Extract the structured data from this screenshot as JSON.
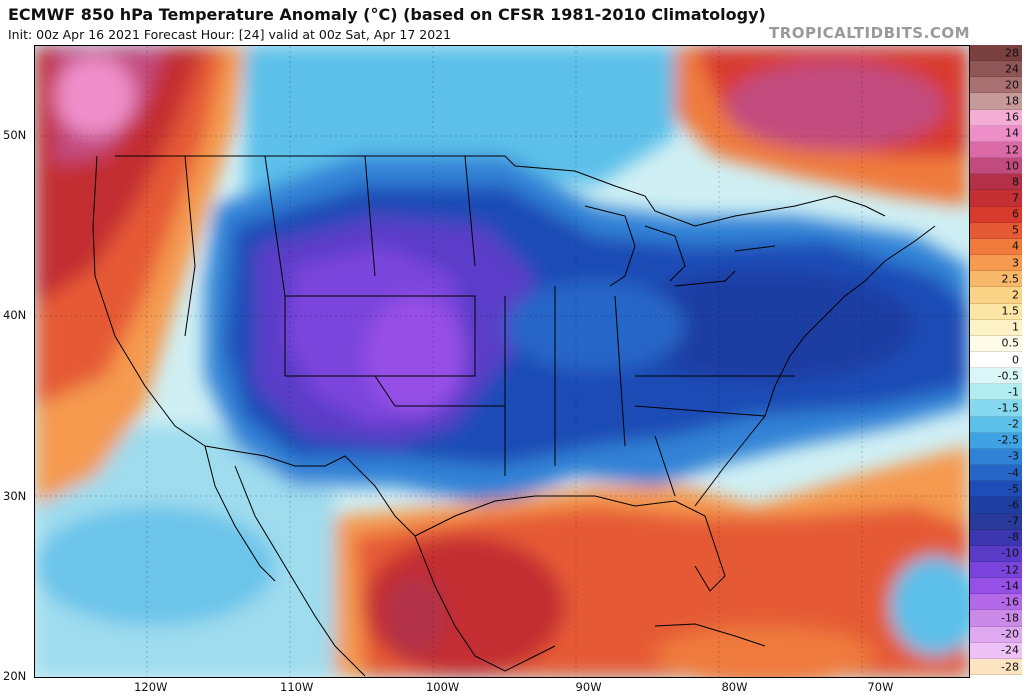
{
  "header": {
    "title": "ECMWF 850 hPa Temperature Anomaly (°C) (based on CFSR 1981-2010 Climatology)",
    "subtitle": "Init: 00z Apr 16 2021   Forecast Hour: [24]   valid at 00z Sat, Apr 17 2021",
    "brand": "TROPICALTIDBITS.COM"
  },
  "map": {
    "lat_labels": [
      {
        "text": "50N",
        "lat": 50
      },
      {
        "text": "40N",
        "lat": 40
      },
      {
        "text": "30N",
        "lat": 30
      },
      {
        "text": "20N",
        "lat": 20
      }
    ],
    "lon_labels": [
      {
        "text": "120W",
        "lon": -120
      },
      {
        "text": "110W",
        "lon": -110
      },
      {
        "text": "100W",
        "lon": -100
      },
      {
        "text": "90W",
        "lon": -90
      },
      {
        "text": "80W",
        "lon": -80
      },
      {
        "text": "70W",
        "lon": -70
      }
    ],
    "lon_range": [
      -128,
      -64
    ],
    "lat_range": [
      20,
      55
    ],
    "anomaly_regions": [
      {
        "name": "pacific-northwest-warm",
        "value": 10,
        "color": "#c0303a"
      },
      {
        "name": "northwest-canada-warm",
        "value": 14,
        "color": "#e89ab0"
      },
      {
        "name": "west-coast-warm",
        "value": 4,
        "color": "#ef7a3c"
      },
      {
        "name": "eastern-canada-warm",
        "value": 8,
        "color": "#c33a4a"
      },
      {
        "name": "mexico-gulf-warm",
        "value": 5,
        "color": "#e05a30"
      },
      {
        "name": "central-us-cold",
        "value": -12,
        "color": "#8a47e0"
      },
      {
        "name": "eastern-us-cold",
        "value": -6,
        "color": "#1f48b8"
      },
      {
        "name": "plains-cold",
        "value": -14,
        "color": "#a45ae8"
      }
    ]
  },
  "colorbar": {
    "items": [
      {
        "label": "28",
        "color": "#7a4040"
      },
      {
        "label": "24",
        "color": "#8e5656"
      },
      {
        "label": "20",
        "color": "#a87070"
      },
      {
        "label": "18",
        "color": "#c79a9a"
      },
      {
        "label": "16",
        "color": "#f4aed6"
      },
      {
        "label": "14",
        "color": "#ee8ec8"
      },
      {
        "label": "12",
        "color": "#d96aa5"
      },
      {
        "label": "10",
        "color": "#c24b7e"
      },
      {
        "label": "8",
        "color": "#b23048"
      },
      {
        "label": "7",
        "color": "#c32f33"
      },
      {
        "label": "6",
        "color": "#d93a2e"
      },
      {
        "label": "5",
        "color": "#e55a35"
      },
      {
        "label": "4",
        "color": "#ef7a3c"
      },
      {
        "label": "3",
        "color": "#f59a50"
      },
      {
        "label": "2.5",
        "color": "#f8b86a"
      },
      {
        "label": "2",
        "color": "#fbd386"
      },
      {
        "label": "1.5",
        "color": "#fce6a6"
      },
      {
        "label": "1",
        "color": "#fdf2c6"
      },
      {
        "label": "0.5",
        "color": "#fefbe8"
      },
      {
        "label": "0",
        "color": "#ffffff"
      },
      {
        "label": "-0.5",
        "color": "#dbf6f6"
      },
      {
        "label": "-1",
        "color": "#b0ecf0"
      },
      {
        "label": "-1.5",
        "color": "#86d8ee"
      },
      {
        "label": "-2",
        "color": "#5cc0ea"
      },
      {
        "label": "-2.5",
        "color": "#3fa2e2"
      },
      {
        "label": "-3",
        "color": "#3082d6"
      },
      {
        "label": "-4",
        "color": "#2766c8"
      },
      {
        "label": "-5",
        "color": "#1f4cb6"
      },
      {
        "label": "-6",
        "color": "#1f3ea2"
      },
      {
        "label": "-7",
        "color": "#2a3a9a"
      },
      {
        "label": "-8",
        "color": "#3c36b0"
      },
      {
        "label": "-10",
        "color": "#5a3cc8"
      },
      {
        "label": "-12",
        "color": "#7a44dc"
      },
      {
        "label": "-14",
        "color": "#9650e6"
      },
      {
        "label": "-16",
        "color": "#b46ae8"
      },
      {
        "label": "-18",
        "color": "#cc8ae8"
      },
      {
        "label": "-20",
        "color": "#e0a8f0"
      },
      {
        "label": "-24",
        "color": "#eec2f6"
      },
      {
        "label": "-28",
        "color": "#fde4c0"
      }
    ]
  }
}
